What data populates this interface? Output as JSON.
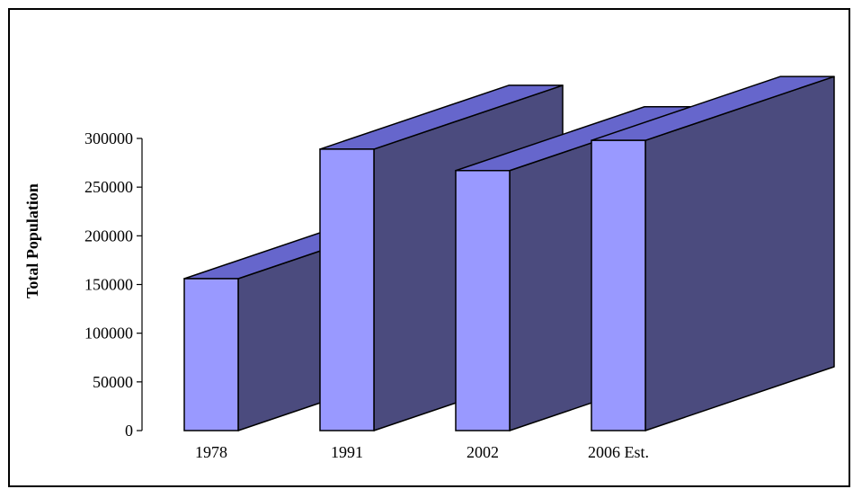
{
  "chart_data": {
    "type": "bar",
    "style": "3d-column",
    "categories": [
      "1978",
      "1991",
      "2002",
      "2006 Est."
    ],
    "values": [
      156000,
      289000,
      267000,
      298000
    ],
    "ylabel": "Total Population",
    "xlabel": "",
    "ylim": [
      0,
      300000
    ],
    "yticks": [
      0,
      50000,
      100000,
      150000,
      200000,
      250000,
      300000
    ],
    "grid": false,
    "legend": "none",
    "colors": {
      "front": "#9999ff",
      "top": "#6666cc",
      "side": "#4b4b7e",
      "stroke": "#000000"
    }
  }
}
